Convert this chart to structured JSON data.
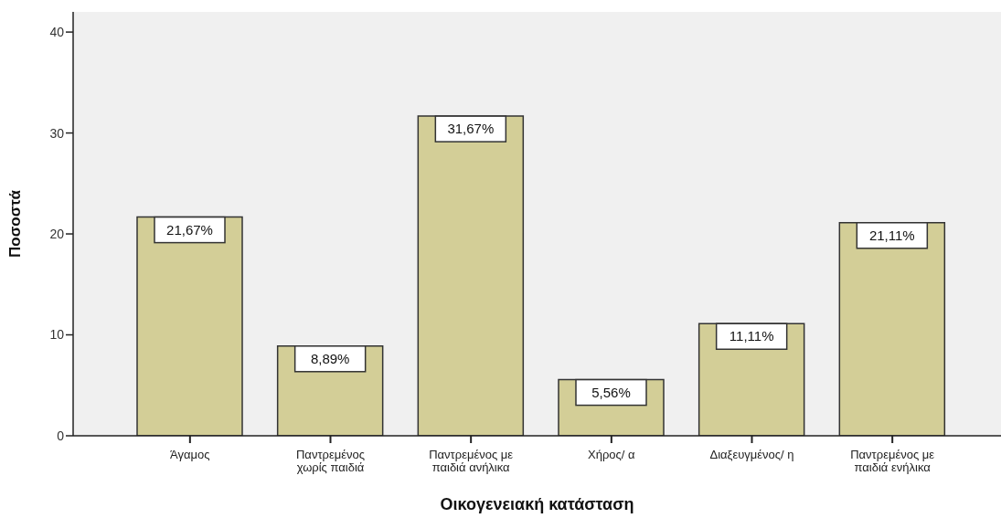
{
  "chart_data": {
    "type": "bar",
    "xlabel": "Οικογενειακή κατάσταση",
    "ylabel": "Ποσοστά",
    "categories": [
      "Άγαμος",
      "Παντρεμένος χωρίς παιδιά",
      "Παντρεμένος με παιδιά ανήλικα",
      "Χήρος/ α",
      "Διαξευγμένος/ η",
      "Παντρεμένος με παιδιά ενήλικα"
    ],
    "values": [
      21.67,
      8.89,
      31.67,
      5.56,
      11.11,
      21.11
    ],
    "color": "#d3ce97",
    "value_labels": [
      "21,67%",
      "8,89%",
      "31,67%",
      "5,56%",
      "11,11%",
      "21,11%"
    ],
    "ylim": [
      0,
      42
    ],
    "yticks": [
      0,
      10,
      20,
      30,
      40
    ]
  }
}
